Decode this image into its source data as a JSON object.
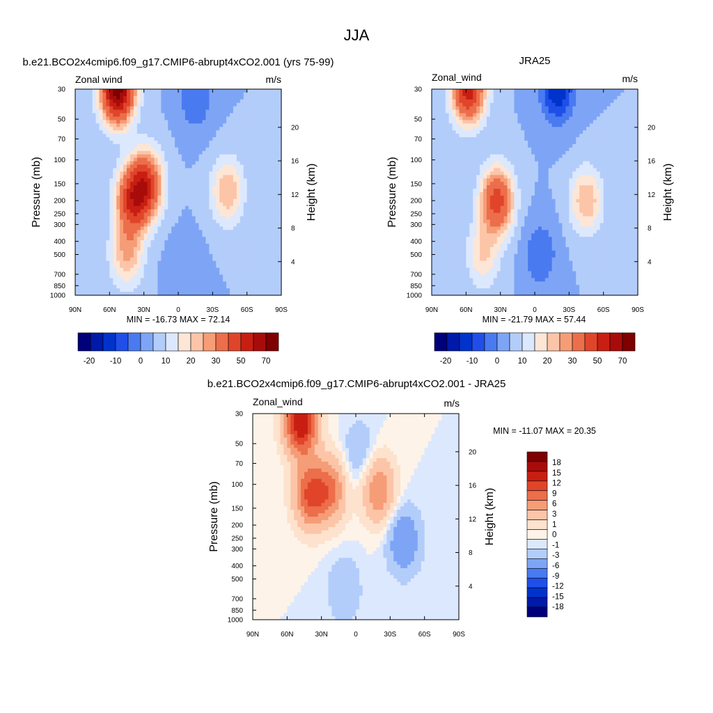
{
  "title": "JJA",
  "colors": {
    "wind": [
      "#00007a",
      "#0019a8",
      "#0033cc",
      "#1f4fe8",
      "#4a7af0",
      "#7ea5f5",
      "#b3cdfa",
      "#dce8fd",
      "#fde6d6",
      "#fcc5a8",
      "#f59d77",
      "#ec6e4b",
      "#e0452a",
      "#c81f12",
      "#a80c0a",
      "#7e0000"
    ],
    "diff": [
      "#00007a",
      "#0019a8",
      "#0033cc",
      "#1f4fe8",
      "#4a7af0",
      "#7ea5f5",
      "#b3cdfa",
      "#dce8fd",
      "#fef3e8",
      "#fde2cd",
      "#fcc5a8",
      "#f59d77",
      "#ec6e4b",
      "#e0452a",
      "#c81f12",
      "#a80c0a",
      "#7e0000"
    ]
  },
  "panels": [
    {
      "title": "b.e21.BCO2x4cmip6.f09_g17.CMIP6-abrupt4xCO2.001 (yrs 75-99)",
      "left_label": "Zonal wind",
      "right_label": "m/s",
      "ylabel": "Pressure (mb)",
      "y2label": "Height (km)",
      "stats": "MIN = -16.73  MAX =  72.14"
    },
    {
      "title": "JRA25",
      "left_label": "Zonal_wind",
      "right_label": "m/s",
      "ylabel": "Pressure (mb)",
      "y2label": "Height (km)",
      "stats": "MIN = -21.79  MAX =  57.44"
    },
    {
      "title": "b.e21.BCO2x4cmip6.f09_g17.CMIP6-abrupt4xCO2.001 - JRA25",
      "left_label": "Zonal_wind",
      "right_label": "m/s",
      "ylabel": "Pressure (mb)",
      "y2label": "Height (km)",
      "stats": "MIN = -11.07  MAX =  20.35"
    }
  ],
  "chart_data": [
    {
      "type": "heatmap",
      "title": "b.e21.BCO2x4cmip6.f09_g17.CMIP6-abrupt4xCO2.001 (yrs 75-99)",
      "xlabel": "",
      "ylabel": "Pressure (mb)",
      "y2label": "Height (km)",
      "x_ticks": [
        "90N",
        "60N",
        "30N",
        "0",
        "30S",
        "60S",
        "90S"
      ],
      "y_ticks": [
        30,
        50,
        70,
        100,
        150,
        200,
        250,
        300,
        400,
        500,
        700,
        850,
        1000
      ],
      "y2_ticks": [
        4,
        8,
        12,
        16,
        20
      ],
      "ylim": [
        1000,
        30
      ],
      "log_scale_y": true,
      "min": -16.73,
      "max": 72.14,
      "colorbar_ticks": [
        -20,
        -10,
        0,
        10,
        20,
        30,
        50,
        70
      ],
      "features": [
        {
          "lat": 53,
          "p": 30,
          "u": 70
        },
        {
          "lat": 28,
          "p": 150,
          "u": 40
        },
        {
          "lat": 40,
          "p": 200,
          "u": 40
        },
        {
          "lat": 45,
          "p": 500,
          "u": 20
        },
        {
          "lat": -43,
          "p": 170,
          "u": 20
        },
        {
          "lat": -15,
          "p": 35,
          "u": -10
        },
        {
          "lat": -5,
          "p": 700,
          "u": -5
        }
      ]
    },
    {
      "type": "heatmap",
      "title": "JRA25",
      "xlabel": "",
      "ylabel": "Pressure (mb)",
      "y2label": "Height (km)",
      "x_ticks": [
        "90N",
        "60N",
        "30N",
        "0",
        "30S",
        "60S",
        "90S"
      ],
      "y_ticks": [
        30,
        50,
        70,
        100,
        150,
        200,
        250,
        300,
        400,
        500,
        700,
        850,
        1000
      ],
      "y2_ticks": [
        4,
        8,
        12,
        16,
        20
      ],
      "ylim": [
        1000,
        30
      ],
      "log_scale_y": true,
      "min": -21.79,
      "max": 57.44,
      "colorbar_ticks": [
        -20,
        -10,
        0,
        10,
        20,
        30,
        50,
        70
      ],
      "features": [
        {
          "lat": 58,
          "p": 30,
          "u": 50
        },
        {
          "lat": 33,
          "p": 200,
          "u": 40
        },
        {
          "lat": 45,
          "p": 500,
          "u": 15
        },
        {
          "lat": -45,
          "p": 200,
          "u": 20
        },
        {
          "lat": -20,
          "p": 30,
          "u": -20
        },
        {
          "lat": -5,
          "p": 500,
          "u": -10
        }
      ]
    },
    {
      "type": "heatmap",
      "title": "b.e21.BCO2x4cmip6.f09_g17.CMIP6-abrupt4xCO2.001 - JRA25",
      "xlabel": "",
      "ylabel": "Pressure (mb)",
      "y2label": "Height (km)",
      "x_ticks": [
        "90N",
        "60N",
        "30N",
        "0",
        "30S",
        "60S",
        "90S"
      ],
      "y_ticks": [
        30,
        50,
        70,
        100,
        150,
        200,
        250,
        300,
        400,
        500,
        700,
        850,
        1000
      ],
      "y2_ticks": [
        4,
        8,
        12,
        16,
        20
      ],
      "ylim": [
        1000,
        30
      ],
      "log_scale_y": true,
      "min": -11.07,
      "max": 20.35,
      "colorbar_ticks": [
        18,
        15,
        12,
        9,
        6,
        3,
        1,
        0,
        -1,
        -3,
        -6,
        -9,
        -12,
        -15,
        -18
      ],
      "features": [
        {
          "lat": 48,
          "p": 35,
          "u": 18
        },
        {
          "lat": 22,
          "p": 110,
          "u": 9
        },
        {
          "lat": 40,
          "p": 120,
          "u": 12
        },
        {
          "lat": -20,
          "p": 110,
          "u": 9
        },
        {
          "lat": -42,
          "p": 260,
          "u": -6
        },
        {
          "lat": -3,
          "p": 60,
          "u": -3
        },
        {
          "lat": 10,
          "p": 600,
          "u": -3
        }
      ]
    }
  ]
}
